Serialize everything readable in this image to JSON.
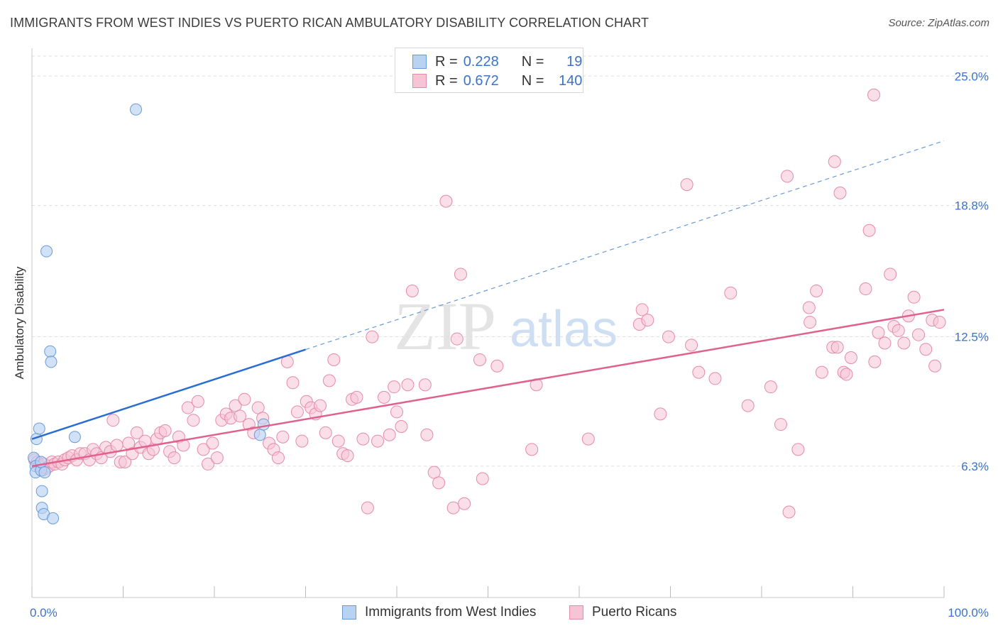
{
  "title": "IMMIGRANTS FROM WEST INDIES VS PUERTO RICAN AMBULATORY DISABILITY CORRELATION CHART",
  "source": "Source: ZipAtlas.com",
  "watermark": {
    "zip": "ZIP",
    "atlas": "atlas"
  },
  "legend": {
    "series1": {
      "r_label": "R =",
      "r_value": "0.228",
      "n_label": "N =",
      "n_value": "19"
    },
    "series2": {
      "r_label": "R =",
      "r_value": "0.672",
      "n_label": "N =",
      "n_value": "140"
    }
  },
  "colors": {
    "blue_fill": "#b8d3f2",
    "blue_stroke": "#6a9ad8",
    "blue_line": "#2a6dd4",
    "pink_fill": "#f7c4d5",
    "pink_stroke": "#e58aab",
    "pink_line": "#e0608e",
    "grid": "#dddddd",
    "axis_label": "#3a73c8"
  },
  "chart_data": {
    "type": "scatter",
    "title": "IMMIGRANTS FROM WEST INDIES VS PUERTO RICAN AMBULATORY DISABILITY CORRELATION CHART",
    "xlabel": "",
    "ylabel": "Ambulatory Disability",
    "xlim": [
      0,
      100
    ],
    "ylim": [
      0,
      26.2
    ],
    "x_tick_labels": [
      "0.0%",
      "100.0%"
    ],
    "y_ticks": [
      6.3,
      12.5,
      18.8,
      25.0
    ],
    "y_tick_labels": [
      "6.3%",
      "12.5%",
      "18.8%",
      "25.0%"
    ],
    "series": [
      {
        "name": "Immigrants from West Indies",
        "r": 0.228,
        "n": 19,
        "trend": {
          "x0": 0,
          "y0": 7.6,
          "x1": 100,
          "y1": 21.9,
          "solid_until": 30
        },
        "points": [
          [
            0.2,
            6.7
          ],
          [
            0.4,
            6.3
          ],
          [
            0.4,
            6.0
          ],
          [
            0.5,
            7.6
          ],
          [
            0.8,
            8.1
          ],
          [
            1.0,
            6.1
          ],
          [
            1.0,
            6.5
          ],
          [
            1.1,
            5.1
          ],
          [
            1.1,
            4.3
          ],
          [
            1.3,
            4.0
          ],
          [
            1.4,
            6.0
          ],
          [
            1.6,
            16.6
          ],
          [
            2.0,
            11.8
          ],
          [
            2.1,
            11.3
          ],
          [
            2.3,
            3.8
          ],
          [
            4.7,
            7.7
          ],
          [
            11.4,
            23.4
          ],
          [
            25.0,
            7.8
          ],
          [
            25.4,
            8.3
          ]
        ]
      },
      {
        "name": "Puerto Ricans",
        "r": 0.672,
        "n": 140,
        "trend": {
          "x0": 0,
          "y0": 6.3,
          "x1": 100,
          "y1": 13.8
        },
        "points": [
          [
            0.3,
            6.6
          ],
          [
            0.6,
            6.5
          ],
          [
            0.8,
            6.3
          ],
          [
            1.1,
            6.1
          ],
          [
            1.3,
            6.4
          ],
          [
            1.6,
            6.2
          ],
          [
            1.9,
            6.3
          ],
          [
            2.2,
            6.5
          ],
          [
            2.5,
            6.4
          ],
          [
            2.9,
            6.5
          ],
          [
            3.3,
            6.4
          ],
          [
            3.6,
            6.6
          ],
          [
            4.0,
            6.7
          ],
          [
            4.4,
            6.8
          ],
          [
            4.9,
            6.6
          ],
          [
            5.3,
            6.9
          ],
          [
            5.8,
            6.9
          ],
          [
            6.3,
            6.6
          ],
          [
            6.7,
            7.1
          ],
          [
            7.1,
            6.9
          ],
          [
            7.6,
            6.7
          ],
          [
            8.1,
            7.2
          ],
          [
            8.6,
            7.0
          ],
          [
            8.9,
            8.5
          ],
          [
            9.3,
            7.3
          ],
          [
            9.7,
            6.5
          ],
          [
            10.2,
            6.5
          ],
          [
            10.6,
            7.4
          ],
          [
            11.0,
            6.9
          ],
          [
            11.5,
            7.9
          ],
          [
            11.9,
            7.2
          ],
          [
            12.4,
            7.5
          ],
          [
            12.8,
            6.9
          ],
          [
            13.3,
            7.1
          ],
          [
            13.7,
            7.6
          ],
          [
            14.1,
            7.9
          ],
          [
            14.6,
            8.0
          ],
          [
            15.1,
            7.0
          ],
          [
            15.6,
            6.7
          ],
          [
            16.1,
            7.7
          ],
          [
            16.6,
            7.3
          ],
          [
            17.1,
            9.1
          ],
          [
            17.7,
            8.5
          ],
          [
            18.2,
            9.4
          ],
          [
            18.8,
            7.1
          ],
          [
            19.3,
            6.4
          ],
          [
            19.8,
            7.4
          ],
          [
            20.3,
            6.7
          ],
          [
            20.8,
            8.5
          ],
          [
            21.3,
            8.8
          ],
          [
            21.8,
            8.6
          ],
          [
            22.3,
            9.2
          ],
          [
            22.8,
            8.7
          ],
          [
            23.3,
            9.5
          ],
          [
            23.8,
            8.3
          ],
          [
            24.3,
            7.9
          ],
          [
            24.8,
            9.1
          ],
          [
            25.3,
            8.6
          ],
          [
            26.0,
            7.4
          ],
          [
            26.5,
            7.1
          ],
          [
            27.0,
            6.7
          ],
          [
            27.5,
            7.7
          ],
          [
            28.0,
            11.3
          ],
          [
            28.6,
            10.3
          ],
          [
            29.1,
            8.9
          ],
          [
            29.6,
            7.5
          ],
          [
            30.1,
            9.4
          ],
          [
            30.6,
            9.1
          ],
          [
            31.1,
            8.8
          ],
          [
            31.6,
            9.2
          ],
          [
            32.2,
            7.9
          ],
          [
            32.6,
            10.4
          ],
          [
            33.1,
            11.4
          ],
          [
            33.6,
            7.5
          ],
          [
            34.1,
            6.9
          ],
          [
            34.6,
            6.8
          ],
          [
            35.1,
            9.5
          ],
          [
            35.6,
            9.6
          ],
          [
            36.3,
            7.6
          ],
          [
            36.8,
            4.3
          ],
          [
            37.3,
            12.5
          ],
          [
            37.9,
            7.5
          ],
          [
            38.6,
            9.6
          ],
          [
            39.2,
            7.8
          ],
          [
            39.7,
            10.1
          ],
          [
            40.0,
            8.9
          ],
          [
            40.5,
            8.2
          ],
          [
            41.2,
            10.2
          ],
          [
            41.7,
            14.7
          ],
          [
            43.1,
            10.2
          ],
          [
            43.3,
            7.8
          ],
          [
            44.1,
            6.0
          ],
          [
            44.6,
            5.5
          ],
          [
            45.4,
            19.0
          ],
          [
            46.2,
            4.3
          ],
          [
            46.6,
            12.4
          ],
          [
            47.0,
            15.5
          ],
          [
            47.4,
            4.5
          ],
          [
            49.1,
            11.4
          ],
          [
            49.4,
            5.7
          ],
          [
            51.0,
            11.1
          ],
          [
            54.8,
            7.1
          ],
          [
            55.3,
            10.2
          ],
          [
            61.0,
            7.6
          ],
          [
            66.6,
            13.1
          ],
          [
            66.9,
            13.8
          ],
          [
            67.5,
            13.3
          ],
          [
            68.9,
            8.8
          ],
          [
            69.8,
            12.5
          ],
          [
            71.8,
            19.8
          ],
          [
            72.3,
            12.1
          ],
          [
            73.1,
            10.8
          ],
          [
            74.9,
            10.5
          ],
          [
            76.6,
            14.6
          ],
          [
            78.5,
            9.2
          ],
          [
            81.0,
            10.1
          ],
          [
            82.1,
            8.3
          ],
          [
            82.8,
            20.2
          ],
          [
            83.0,
            4.1
          ],
          [
            84.0,
            7.1
          ],
          [
            85.2,
            13.9
          ],
          [
            85.3,
            13.2
          ],
          [
            86.0,
            14.7
          ],
          [
            86.6,
            10.8
          ],
          [
            87.8,
            12.0
          ],
          [
            88.0,
            20.9
          ],
          [
            88.3,
            12.0
          ],
          [
            88.6,
            19.4
          ],
          [
            89.0,
            10.8
          ],
          [
            89.3,
            10.7
          ],
          [
            89.8,
            11.5
          ],
          [
            91.4,
            14.8
          ],
          [
            91.8,
            17.6
          ],
          [
            92.4,
            11.3
          ],
          [
            92.8,
            12.7
          ],
          [
            93.5,
            12.2
          ],
          [
            94.1,
            15.5
          ],
          [
            94.5,
            13.0
          ],
          [
            95.0,
            12.8
          ],
          [
            95.6,
            12.2
          ],
          [
            96.1,
            13.5
          ],
          [
            96.7,
            14.4
          ],
          [
            97.2,
            12.6
          ],
          [
            98.0,
            11.9
          ],
          [
            98.7,
            13.3
          ],
          [
            99.0,
            11.1
          ],
          [
            99.5,
            13.2
          ],
          [
            92.3,
            24.1
          ]
        ]
      }
    ]
  }
}
